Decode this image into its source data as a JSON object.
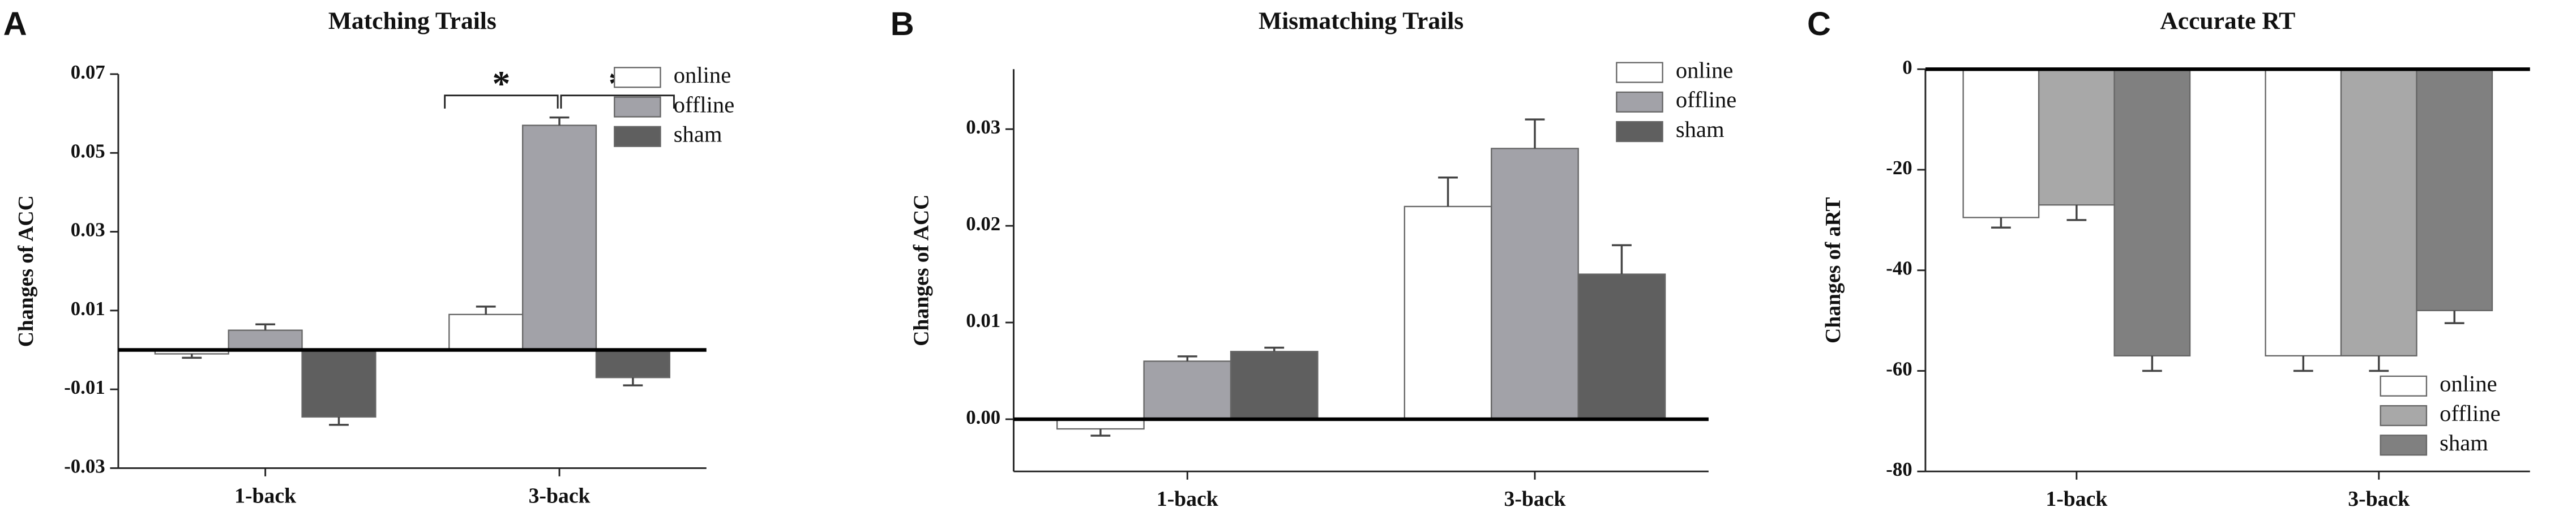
{
  "chart_data": [
    {
      "type": "bar",
      "panel": "A",
      "title": "Matching Trails",
      "y_label": "Changes of ACC",
      "categories": [
        "1-back",
        "3-back"
      ],
      "series": [
        {
          "name": "online",
          "color": "#ffffff",
          "values": [
            -0.001,
            0.009
          ],
          "errors": [
            0.001,
            0.002
          ]
        },
        {
          "name": "offline",
          "color": "#a2a2a8",
          "values": [
            0.005,
            0.057
          ],
          "errors": [
            0.0015,
            0.002
          ]
        },
        {
          "name": "sham",
          "color": "#5f5f5f",
          "values": [
            -0.017,
            -0.007
          ],
          "errors": [
            0.002,
            0.002
          ]
        }
      ],
      "ylim": [
        -0.03,
        0.07
      ],
      "yticks": [
        -0.03,
        -0.01,
        0.01,
        0.03,
        0.05,
        0.07
      ],
      "annotations": [
        "*",
        "*"
      ],
      "legend": "upper right"
    },
    {
      "type": "bar",
      "panel": "B",
      "title": "Mismatching Trails",
      "y_label": "Changes of ACC",
      "categories": [
        "1-back",
        "3-back"
      ],
      "series": [
        {
          "name": "online",
          "color": "#ffffff",
          "values": [
            -0.001,
            0.022
          ],
          "errors": [
            0.0007,
            0.003
          ]
        },
        {
          "name": "offline",
          "color": "#a2a2a8",
          "values": [
            0.006,
            0.028
          ],
          "errors": [
            0.0005,
            0.003
          ]
        },
        {
          "name": "sham",
          "color": "#5f5f5f",
          "values": [
            0.007,
            0.015
          ],
          "errors": [
            0.0004,
            0.003
          ]
        }
      ],
      "ylim": [
        -0.0054,
        0.0362
      ],
      "yticks": [
        {
          "value": 0,
          "label": "0.00"
        },
        0.01,
        0.02,
        0.03
      ],
      "legend": "upper right"
    },
    {
      "type": "bar",
      "panel": "C",
      "title": "Accurate RT",
      "y_label": "Changes of aRT",
      "categories": [
        "1-back",
        "3-back"
      ],
      "series": [
        {
          "name": "online",
          "color": "#ffffff",
          "values": [
            -29.5,
            -57
          ],
          "errors": [
            2,
            3
          ]
        },
        {
          "name": "offline",
          "color": "#a8a8a8",
          "values": [
            -27,
            -57
          ],
          "errors": [
            3,
            3
          ]
        },
        {
          "name": "sham",
          "color": "#808080",
          "values": [
            -57,
            -48
          ],
          "errors": [
            3,
            2.5
          ]
        }
      ],
      "ylim": [
        -80,
        0
      ],
      "yticks": [
        0,
        -20,
        -40,
        -60,
        -80
      ],
      "legend": "lower right"
    }
  ]
}
